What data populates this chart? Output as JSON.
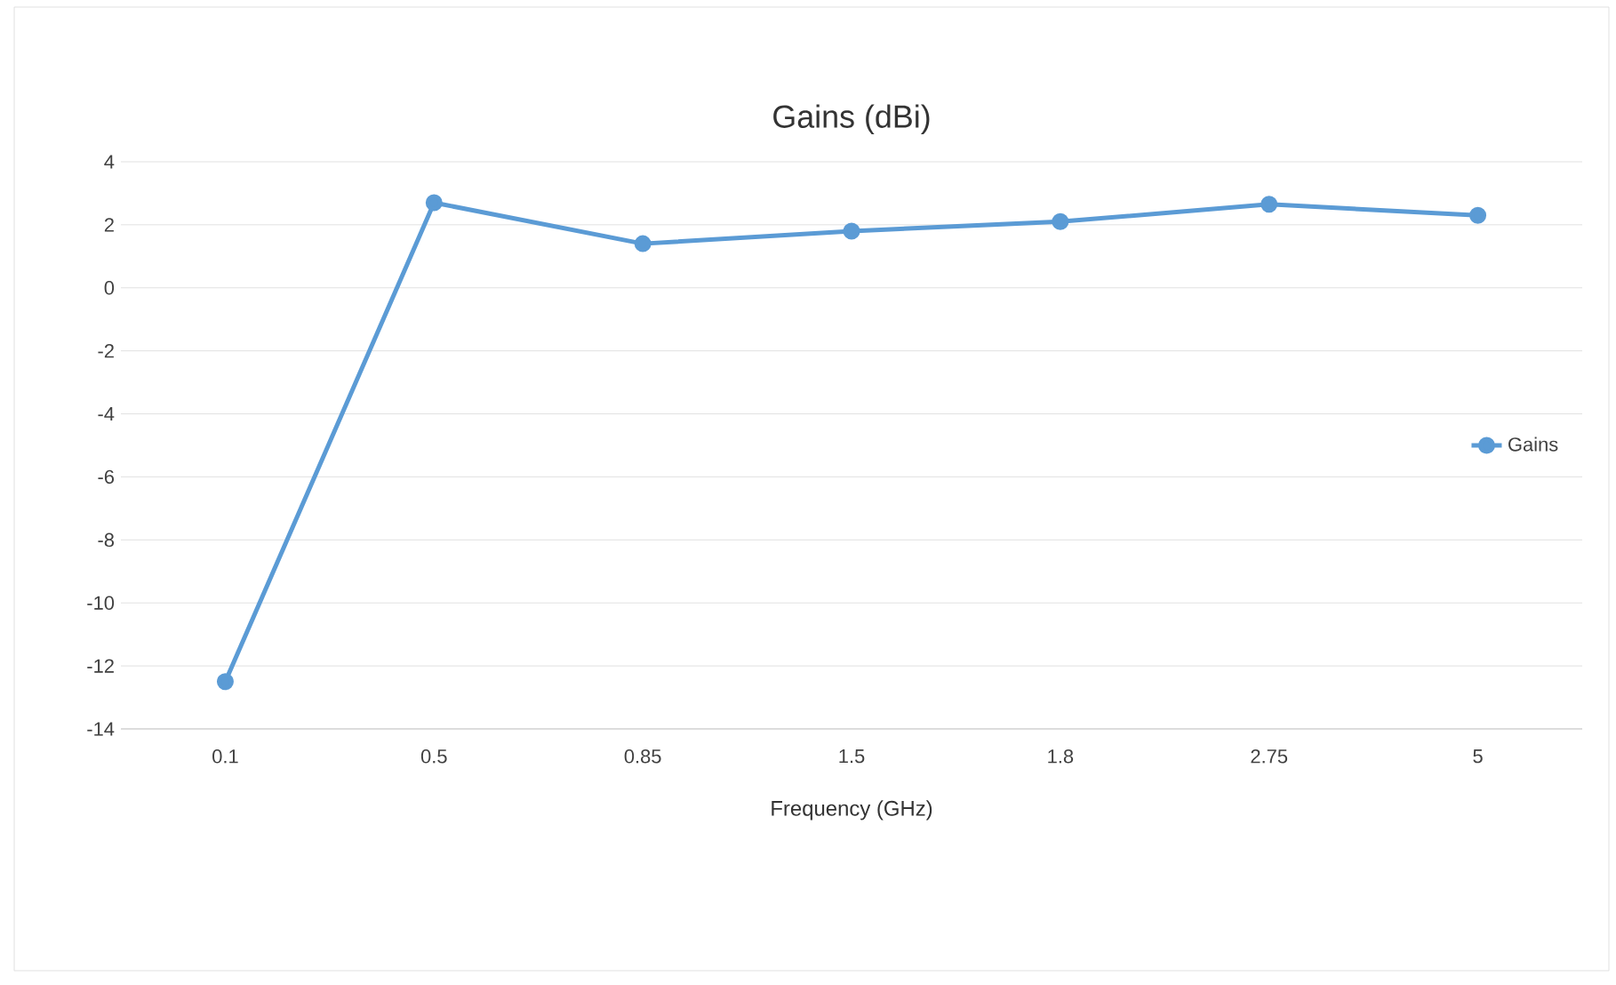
{
  "chart_data": {
    "type": "line",
    "title": "Gains (dBi)",
    "xlabel": "Frequency (GHz)",
    "categories": [
      "0.1",
      "0.5",
      "0.85",
      "1.5",
      "1.8",
      "2.75",
      "5"
    ],
    "series": [
      {
        "name": "Gains",
        "color": "#5b9bd5",
        "values": [
          -12.5,
          2.7,
          1.4,
          1.8,
          2.1,
          2.65,
          2.3
        ]
      }
    ],
    "ylim": [
      -14,
      4
    ],
    "yticks": [
      -14,
      -12,
      -10,
      -8,
      -6,
      -4,
      -2,
      0,
      2,
      4
    ],
    "grid": "y",
    "legend": "right",
    "marker": "circle",
    "line_style": "solid"
  }
}
